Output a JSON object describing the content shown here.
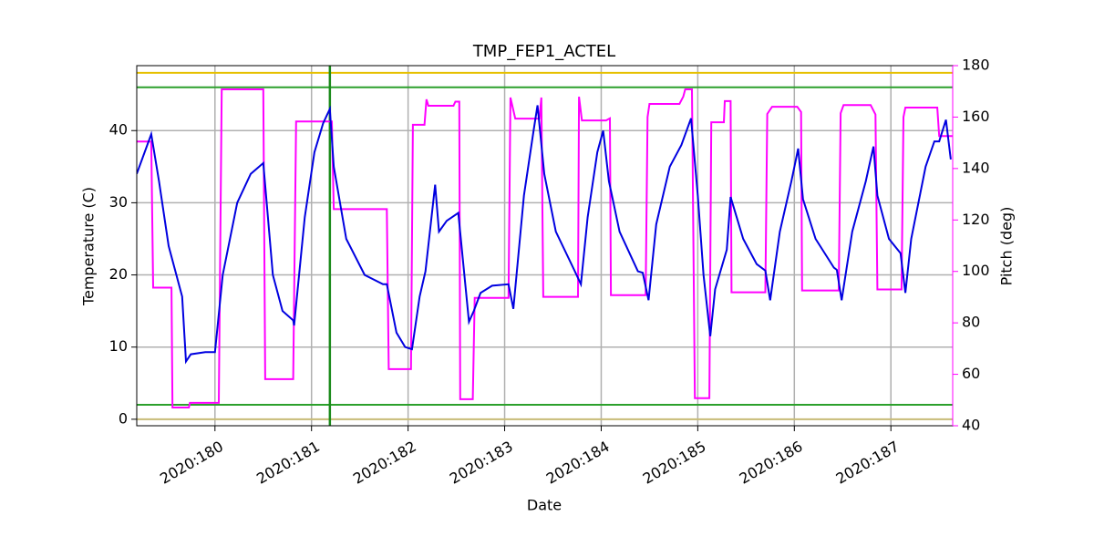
{
  "chart_data": {
    "type": "line",
    "title": "TMP_FEP1_ACTEL",
    "xlabel": "Date",
    "ylabel": "Temperature (C)",
    "y2label": "Pitch (deg)",
    "y2color": "#ff00ff",
    "xlim": [
      179.19,
      187.64
    ],
    "ylim": [
      -0.9,
      49
    ],
    "y2lim": [
      40,
      180
    ],
    "xticks": [
      {
        "value": 180,
        "label": "2020:180"
      },
      {
        "value": 181,
        "label": "2020:181"
      },
      {
        "value": 182,
        "label": "2020:182"
      },
      {
        "value": 183,
        "label": "2020:183"
      },
      {
        "value": 184,
        "label": "2020:184"
      },
      {
        "value": 185,
        "label": "2020:185"
      },
      {
        "value": 186,
        "label": "2020:186"
      },
      {
        "value": 187,
        "label": "2020:187"
      }
    ],
    "yticks": [
      0,
      10,
      20,
      30,
      40
    ],
    "y2ticks": [
      40,
      60,
      80,
      100,
      120,
      140,
      160,
      180
    ],
    "grid": true,
    "hlines": [
      {
        "value": 48,
        "color": "#e6c000"
      },
      {
        "value": 46,
        "color": "#2ca02c"
      },
      {
        "value": 2,
        "color": "#2ca02c"
      },
      {
        "value": 0,
        "color": "#c8bc78"
      }
    ],
    "vlines": [
      {
        "value": 181.19,
        "color": "#1a8a1a"
      }
    ],
    "series": [
      {
        "name": "Temperature",
        "color": "#0000e0",
        "x": [
          179.19,
          179.34,
          179.42,
          179.52,
          179.66,
          179.7,
          179.75,
          179.9,
          180.0,
          180.08,
          180.23,
          180.37,
          180.5,
          180.6,
          180.7,
          180.81,
          180.82,
          180.93,
          181.03,
          181.12,
          181.19,
          181.23,
          181.36,
          181.55,
          181.74,
          181.78,
          181.88,
          181.97,
          182.04,
          182.12,
          182.18,
          182.28,
          182.32,
          182.4,
          182.52,
          182.63,
          182.68,
          182.75,
          182.87,
          183.04,
          183.09,
          183.2,
          183.3,
          183.34,
          183.41,
          183.53,
          183.72,
          183.79,
          183.86,
          183.96,
          184.02,
          184.08,
          184.19,
          184.38,
          184.43,
          184.49,
          184.57,
          184.71,
          184.83,
          184.93,
          185.0,
          185.06,
          185.13,
          185.18,
          185.3,
          185.34,
          185.47,
          185.61,
          185.7,
          185.75,
          185.85,
          185.97,
          186.04,
          186.09,
          186.22,
          186.41,
          186.44,
          186.49,
          186.6,
          186.74,
          186.82,
          186.86,
          186.98,
          187.1,
          187.15,
          187.21,
          187.36,
          187.45,
          187.5,
          187.57,
          187.62
        ],
        "values": [
          34,
          39.5,
          33,
          24,
          17,
          8,
          9,
          9.3,
          9.3,
          20,
          30,
          34,
          35.5,
          20,
          15,
          13.7,
          13,
          28,
          37,
          41,
          43,
          35,
          25,
          20,
          18.7,
          18.7,
          12,
          10,
          9.7,
          17,
          20.5,
          32.5,
          26,
          27.5,
          28.6,
          13.5,
          15,
          17.5,
          18.5,
          18.7,
          15.3,
          31,
          40,
          43.5,
          34,
          26,
          20.7,
          18.7,
          28,
          37,
          40,
          33,
          26,
          20.5,
          20.3,
          16.5,
          27,
          35,
          38,
          41.7,
          31,
          20,
          11.5,
          18,
          23.5,
          30.8,
          25,
          21.5,
          20.6,
          16.5,
          26,
          33,
          37.5,
          30.5,
          25,
          21,
          20.7,
          16.5,
          26,
          33,
          37.8,
          31,
          25,
          23,
          17.5,
          25,
          35,
          38.5,
          38.5,
          41.5,
          36
        ]
      },
      {
        "name": "Pitch",
        "color": "#ff00ff",
        "axis": "y2",
        "x": [
          179.19,
          179.34,
          179.36,
          179.55,
          179.56,
          179.73,
          179.74,
          180.04,
          180.07,
          180.5,
          180.52,
          180.81,
          180.84,
          181.21,
          181.23,
          181.78,
          181.8,
          182.03,
          182.05,
          182.17,
          182.19,
          182.21,
          182.47,
          182.49,
          182.53,
          182.54,
          182.67,
          182.69,
          183.04,
          183.06,
          183.11,
          183.36,
          183.38,
          183.4,
          183.76,
          183.77,
          183.8,
          184.05,
          184.09,
          184.1,
          184.46,
          184.48,
          184.5,
          184.81,
          184.85,
          184.87,
          184.94,
          184.97,
          185.12,
          185.14,
          185.27,
          185.28,
          185.34,
          185.35,
          185.7,
          185.72,
          185.77,
          186.03,
          186.07,
          186.08,
          186.46,
          186.48,
          186.51,
          186.79,
          186.84,
          186.86,
          187.11,
          187.13,
          187.15,
          187.48,
          187.5,
          187.64
        ],
        "values": [
          150.5,
          150.5,
          93.7,
          93.7,
          47.1,
          47.1,
          48.9,
          48.9,
          170.8,
          170.8,
          58.1,
          58.1,
          158.3,
          158.3,
          124.2,
          124.2,
          62,
          62,
          157,
          157,
          166.9,
          164.4,
          164.4,
          166,
          166,
          50.3,
          50.3,
          89.7,
          89.7,
          167.6,
          159.4,
          159.4,
          167.6,
          90.1,
          90.1,
          167.9,
          158.7,
          158.7,
          159.5,
          90.8,
          90.8,
          160,
          165.1,
          165.1,
          168,
          170.8,
          170.8,
          50.7,
          50.7,
          158,
          158,
          166.2,
          166.2,
          91.9,
          91.9,
          161.2,
          164,
          164,
          162,
          92.6,
          92.6,
          161.5,
          164.7,
          164.7,
          161,
          93,
          93,
          160,
          163.7,
          163.7,
          152.6,
          152.6
        ]
      }
    ]
  }
}
